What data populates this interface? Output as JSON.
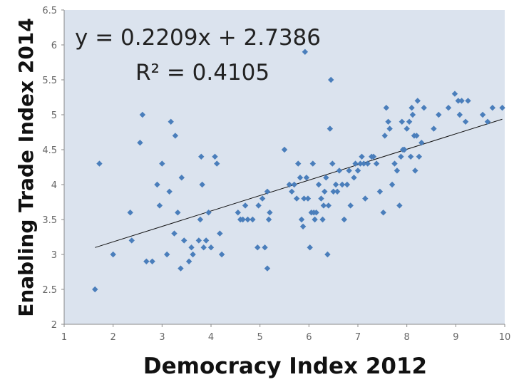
{
  "chart_data": {
    "type": "scatter",
    "title": "",
    "xlabel": "Democracy Index 2012",
    "ylabel": "Enabling Trade Index 2014",
    "xlim": [
      1,
      10
    ],
    "ylim": [
      2,
      6.5
    ],
    "x_ticks": [
      "1",
      "2",
      "3",
      "4",
      "5",
      "6",
      "7",
      "8",
      "9",
      "10"
    ],
    "y_ticks": [
      "2",
      "2.5",
      "3",
      "3.5",
      "4",
      "4.5",
      "5",
      "5.5",
      "6",
      "6.5"
    ],
    "grid": false,
    "marker_color": "#4a7ebb",
    "plot_background": "#dbe3ee",
    "trendline": {
      "slope": 0.2209,
      "intercept": 2.7386,
      "equation": "y = 0.2209x + 2.7386",
      "r_squared": "R² = 0.4105"
    },
    "points": [
      [
        1.63,
        2.5
      ],
      [
        1.72,
        4.3
      ],
      [
        2.0,
        3.0
      ],
      [
        2.35,
        3.6
      ],
      [
        2.38,
        3.2
      ],
      [
        2.55,
        4.6
      ],
      [
        2.6,
        5.0
      ],
      [
        2.68,
        2.9
      ],
      [
        2.8,
        2.9
      ],
      [
        2.9,
        4.0
      ],
      [
        2.95,
        3.7
      ],
      [
        3.0,
        4.3
      ],
      [
        3.1,
        3.0
      ],
      [
        3.15,
        3.9
      ],
      [
        3.18,
        4.9
      ],
      [
        3.25,
        3.3
      ],
      [
        3.27,
        4.7
      ],
      [
        3.32,
        3.6
      ],
      [
        3.38,
        2.8
      ],
      [
        3.4,
        4.1
      ],
      [
        3.45,
        3.2
      ],
      [
        3.55,
        2.9
      ],
      [
        3.6,
        3.1
      ],
      [
        3.63,
        3.0
      ],
      [
        3.75,
        3.2
      ],
      [
        3.78,
        3.5
      ],
      [
        3.8,
        4.4
      ],
      [
        3.82,
        4.0
      ],
      [
        3.85,
        3.1
      ],
      [
        3.9,
        3.2
      ],
      [
        3.95,
        3.6
      ],
      [
        4.0,
        3.1
      ],
      [
        4.08,
        4.4
      ],
      [
        4.12,
        4.3
      ],
      [
        4.18,
        3.3
      ],
      [
        4.22,
        3.0
      ],
      [
        4.55,
        3.6
      ],
      [
        4.6,
        3.5
      ],
      [
        4.65,
        3.5
      ],
      [
        4.7,
        3.7
      ],
      [
        4.75,
        3.5
      ],
      [
        4.85,
        3.5
      ],
      [
        4.95,
        3.1
      ],
      [
        4.97,
        3.7
      ],
      [
        5.05,
        3.8
      ],
      [
        5.1,
        3.1
      ],
      [
        5.15,
        3.9
      ],
      [
        5.15,
        2.8
      ],
      [
        5.18,
        3.5
      ],
      [
        5.2,
        3.6
      ],
      [
        5.5,
        4.5
      ],
      [
        5.6,
        4.0
      ],
      [
        5.65,
        3.9
      ],
      [
        5.7,
        4.0
      ],
      [
        5.75,
        3.8
      ],
      [
        5.78,
        4.3
      ],
      [
        5.82,
        4.1
      ],
      [
        5.85,
        3.5
      ],
      [
        5.88,
        3.4
      ],
      [
        5.9,
        3.8
      ],
      [
        5.92,
        5.9
      ],
      [
        5.95,
        4.1
      ],
      [
        5.98,
        3.8
      ],
      [
        6.02,
        3.1
      ],
      [
        6.05,
        3.6
      ],
      [
        6.08,
        4.3
      ],
      [
        6.1,
        3.6
      ],
      [
        6.12,
        3.5
      ],
      [
        6.15,
        3.6
      ],
      [
        6.2,
        4.0
      ],
      [
        6.25,
        3.8
      ],
      [
        6.28,
        3.5
      ],
      [
        6.3,
        3.7
      ],
      [
        6.32,
        3.9
      ],
      [
        6.35,
        4.1
      ],
      [
        6.38,
        3.0
      ],
      [
        6.4,
        3.7
      ],
      [
        6.43,
        4.8
      ],
      [
        6.45,
        5.5
      ],
      [
        6.48,
        4.3
      ],
      [
        6.5,
        3.9
      ],
      [
        6.55,
        4.0
      ],
      [
        6.58,
        3.9
      ],
      [
        6.62,
        4.2
      ],
      [
        6.68,
        4.0
      ],
      [
        6.72,
        3.5
      ],
      [
        6.78,
        4.0
      ],
      [
        6.82,
        4.2
      ],
      [
        6.85,
        3.7
      ],
      [
        6.92,
        4.1
      ],
      [
        6.95,
        4.3
      ],
      [
        7.0,
        4.2
      ],
      [
        7.05,
        4.3
      ],
      [
        7.08,
        4.4
      ],
      [
        7.12,
        4.3
      ],
      [
        7.15,
        3.8
      ],
      [
        7.2,
        4.3
      ],
      [
        7.28,
        4.4
      ],
      [
        7.32,
        4.4
      ],
      [
        7.38,
        4.3
      ],
      [
        7.45,
        3.9
      ],
      [
        7.52,
        3.6
      ],
      [
        7.55,
        4.7
      ],
      [
        7.58,
        5.1
      ],
      [
        7.62,
        4.9
      ],
      [
        7.65,
        4.8
      ],
      [
        7.7,
        4.0
      ],
      [
        7.75,
        4.3
      ],
      [
        7.8,
        4.2
      ],
      [
        7.85,
        3.7
      ],
      [
        7.88,
        4.4
      ],
      [
        7.9,
        4.9
      ],
      [
        7.92,
        4.5
      ],
      [
        7.95,
        4.5
      ],
      [
        8.0,
        4.8
      ],
      [
        8.05,
        4.9
      ],
      [
        8.08,
        4.4
      ],
      [
        8.1,
        5.1
      ],
      [
        8.12,
        5.0
      ],
      [
        8.15,
        4.7
      ],
      [
        8.17,
        4.2
      ],
      [
        8.2,
        4.7
      ],
      [
        8.22,
        5.2
      ],
      [
        8.25,
        4.4
      ],
      [
        8.3,
        4.6
      ],
      [
        8.35,
        5.1
      ],
      [
        8.55,
        4.8
      ],
      [
        8.65,
        5.0
      ],
      [
        8.85,
        5.1
      ],
      [
        8.98,
        5.3
      ],
      [
        9.05,
        5.2
      ],
      [
        9.08,
        5.0
      ],
      [
        9.12,
        5.2
      ],
      [
        9.2,
        4.9
      ],
      [
        9.25,
        5.2
      ],
      [
        9.55,
        5.0
      ],
      [
        9.65,
        4.9
      ],
      [
        9.75,
        5.1
      ],
      [
        9.95,
        5.1
      ]
    ]
  }
}
